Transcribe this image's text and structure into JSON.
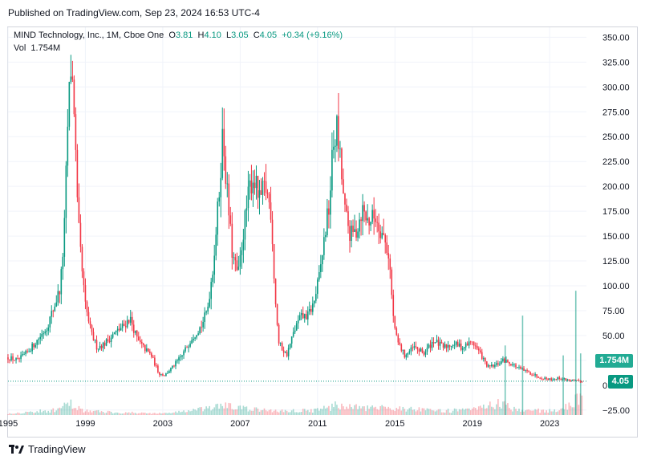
{
  "header": {
    "published": "Published on TradingView.com, Sep 23, 2024 16:53 UTC-4"
  },
  "legend": {
    "symbol": "MIND Technology, Inc., 1M, Cboe One",
    "o_label": "O",
    "o_value": "3.81",
    "h_label": "H",
    "h_value": "4.10",
    "l_label": "L",
    "l_value": "3.05",
    "c_label": "C",
    "c_value": "4.05",
    "change": "+0.34 (+9.16%)",
    "vol_label": "Vol",
    "vol_value": "1.754M"
  },
  "badges": {
    "volume": "1.754M",
    "price": "4.05"
  },
  "brand": {
    "name": "TradingView"
  },
  "colors": {
    "up": "#089981",
    "down": "#f23645",
    "up_vol": "#089981",
    "down_vol": "#f23645",
    "grid": "#f0f3fa",
    "axis_text": "#131722"
  },
  "chart_data": {
    "type": "candlestick",
    "title": "MIND Technology, Inc., 1M, Cboe One",
    "interval": "1M",
    "ylim": [
      -30,
      360
    ],
    "y_ticks": [
      -25,
      0,
      25,
      50,
      75,
      100,
      125,
      150,
      175,
      200,
      225,
      250,
      275,
      300,
      325,
      350
    ],
    "y_tick_labels": [
      "−25.00",
      "0",
      "25.00",
      "50.00",
      "75.00",
      "100.00",
      "125.00",
      "150.00",
      "175.00",
      "200.00",
      "225.00",
      "250.00",
      "275.00",
      "300.00",
      "325.00",
      "350.00"
    ],
    "x_range": [
      1995.0,
      2024.9
    ],
    "x_ticks": [
      1995,
      1999,
      2003,
      2007,
      2011,
      2015,
      2019,
      2023
    ],
    "x_tick_labels": [
      "1995",
      "1999",
      "2003",
      "2007",
      "2011",
      "2015",
      "2019",
      "2023"
    ],
    "last_close": 4.05,
    "price_path": [
      [
        1995.0,
        28
      ],
      [
        1995.5,
        25
      ],
      [
        1996.0,
        33
      ],
      [
        1996.5,
        45
      ],
      [
        1997.0,
        58
      ],
      [
        1997.4,
        80
      ],
      [
        1997.7,
        98
      ],
      [
        1997.9,
        150
      ],
      [
        1998.1,
        270
      ],
      [
        1998.25,
        320
      ],
      [
        1998.4,
        290
      ],
      [
        1998.6,
        170
      ],
      [
        1998.8,
        120
      ],
      [
        1999.0,
        80
      ],
      [
        1999.3,
        52
      ],
      [
        1999.6,
        38
      ],
      [
        2000.0,
        42
      ],
      [
        2000.5,
        52
      ],
      [
        2001.0,
        60
      ],
      [
        2001.3,
        68
      ],
      [
        2001.7,
        45
      ],
      [
        2002.0,
        38
      ],
      [
        2002.4,
        30
      ],
      [
        2002.8,
        12
      ],
      [
        2003.1,
        10
      ],
      [
        2003.5,
        18
      ],
      [
        2004.0,
        30
      ],
      [
        2004.5,
        48
      ],
      [
        2005.0,
        60
      ],
      [
        2005.3,
        75
      ],
      [
        2005.6,
        120
      ],
      [
        2005.9,
        190
      ],
      [
        2006.1,
        255
      ],
      [
        2006.3,
        200
      ],
      [
        2006.6,
        130
      ],
      [
        2006.9,
        110
      ],
      [
        2007.2,
        160
      ],
      [
        2007.5,
        200
      ],
      [
        2007.7,
        210
      ],
      [
        2008.0,
        185
      ],
      [
        2008.3,
        200
      ],
      [
        2008.6,
        175
      ],
      [
        2008.8,
        90
      ],
      [
        2009.0,
        42
      ],
      [
        2009.4,
        30
      ],
      [
        2009.8,
        55
      ],
      [
        2010.1,
        68
      ],
      [
        2010.5,
        70
      ],
      [
        2010.8,
        82
      ],
      [
        2011.1,
        110
      ],
      [
        2011.4,
        155
      ],
      [
        2011.6,
        180
      ],
      [
        2011.8,
        240
      ],
      [
        2012.0,
        258
      ],
      [
        2012.2,
        220
      ],
      [
        2012.4,
        175
      ],
      [
        2012.7,
        150
      ],
      [
        2013.0,
        155
      ],
      [
        2013.3,
        178
      ],
      [
        2013.6,
        165
      ],
      [
        2014.0,
        170
      ],
      [
        2014.4,
        150
      ],
      [
        2014.7,
        130
      ],
      [
        2014.9,
        70
      ],
      [
        2015.1,
        45
      ],
      [
        2015.5,
        30
      ],
      [
        2016.0,
        38
      ],
      [
        2016.5,
        32
      ],
      [
        2017.0,
        45
      ],
      [
        2017.5,
        38
      ],
      [
        2018.0,
        42
      ],
      [
        2018.5,
        38
      ],
      [
        2019.0,
        44
      ],
      [
        2019.4,
        32
      ],
      [
        2019.8,
        18
      ],
      [
        2020.2,
        20
      ],
      [
        2020.6,
        25
      ],
      [
        2021.0,
        22
      ],
      [
        2021.5,
        16
      ],
      [
        2022.0,
        12
      ],
      [
        2022.5,
        8
      ],
      [
        2023.0,
        6
      ],
      [
        2023.5,
        7
      ],
      [
        2024.0,
        5
      ],
      [
        2024.5,
        3.8
      ],
      [
        2024.72,
        4.05
      ]
    ],
    "volume_path": [
      [
        1995.0,
        2
      ],
      [
        1997.5,
        6
      ],
      [
        1998.2,
        14
      ],
      [
        1999.0,
        5
      ],
      [
        2001.0,
        3
      ],
      [
        2003.0,
        2
      ],
      [
        2005.5,
        8
      ],
      [
        2006.0,
        12
      ],
      [
        2007.5,
        7
      ],
      [
        2009.0,
        5
      ],
      [
        2011.0,
        6
      ],
      [
        2012.0,
        12
      ],
      [
        2013.5,
        8
      ],
      [
        2015.0,
        9
      ],
      [
        2017.0,
        5
      ],
      [
        2019.0,
        6
      ],
      [
        2020.3,
        14
      ],
      [
        2021.5,
        6
      ],
      [
        2023.5,
        5
      ],
      [
        2024.5,
        20
      ]
    ],
    "volume_spikes": [
      {
        "x": 2020.7,
        "value": 40
      },
      {
        "x": 2021.6,
        "value": 70
      },
      {
        "x": 2023.7,
        "value": 30
      },
      {
        "x": 2024.35,
        "value": 95
      },
      {
        "x": 2024.6,
        "value": 32
      }
    ]
  }
}
